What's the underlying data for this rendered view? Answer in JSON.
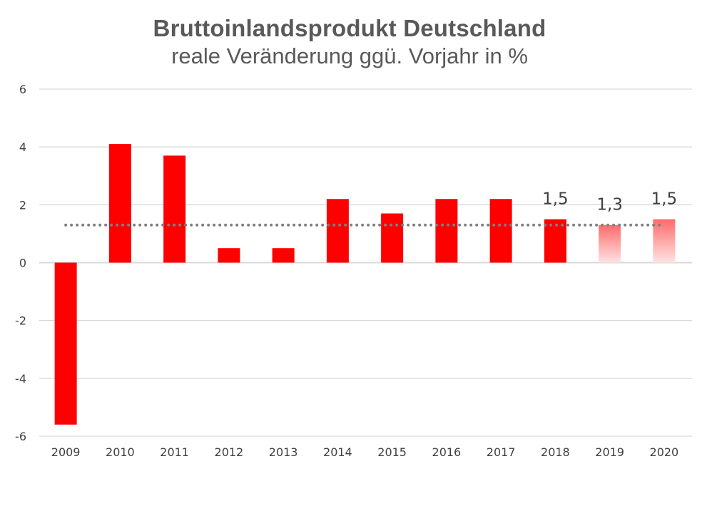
{
  "chart_data": {
    "type": "bar",
    "title": "Bruttoinlandsprodukt Deutschland",
    "subtitle": "reale Veränderung ggü. Vorjahr in %",
    "categories": [
      "2009",
      "2010",
      "2011",
      "2012",
      "2013",
      "2014",
      "2015",
      "2016",
      "2017",
      "2018",
      "2019",
      "2020"
    ],
    "values": [
      -5.6,
      4.1,
      3.7,
      0.5,
      0.5,
      2.2,
      1.7,
      2.2,
      2.2,
      1.5,
      1.3,
      1.5
    ],
    "forecast_categories": [
      "2019",
      "2020"
    ],
    "data_labels": {
      "2018": "1,5",
      "2019": "1,3",
      "2020": "1,5"
    },
    "reference_line": 1.3,
    "ylim": [
      -6,
      6
    ],
    "yticks": [
      "6",
      "4",
      "2",
      "0",
      "-2",
      "-4",
      "-6"
    ],
    "grid": true,
    "xlabel": "",
    "ylabel": "",
    "colors": {
      "bar": "#ff0000",
      "forecast_top": "#ff6b6b",
      "forecast_bottom": "#ffe3e3",
      "grid": "#d9d9d9",
      "reference": "#7f7f7f"
    }
  }
}
